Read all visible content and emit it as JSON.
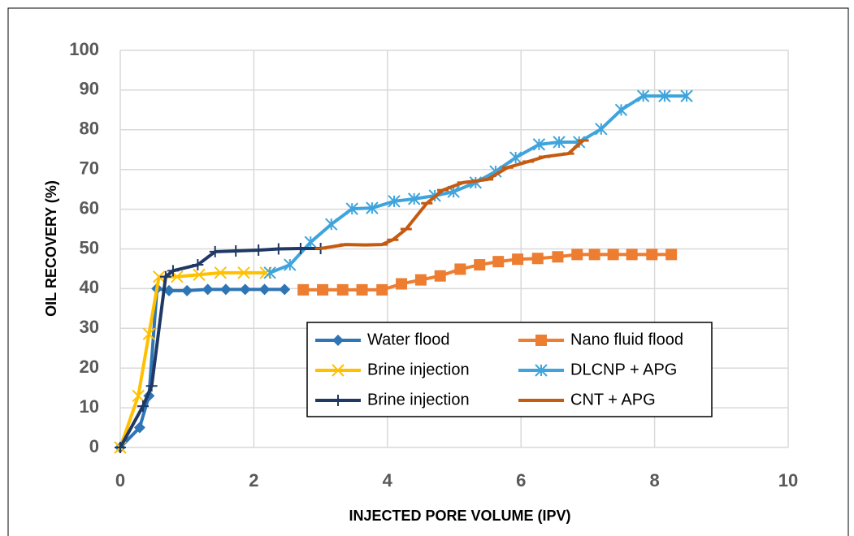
{
  "chart_data": {
    "type": "line",
    "x_label": "INJECTED PORE VOLUME (IPV)",
    "y_label": "OIL RECOVERY (%)",
    "xlim": [
      0,
      10
    ],
    "xticks": [
      0,
      2,
      4,
      6,
      8,
      10
    ],
    "ylim": [
      0,
      100
    ],
    "yticks": [
      0,
      10,
      20,
      30,
      40,
      50,
      60,
      70,
      80,
      90,
      100
    ],
    "grid": true,
    "series": [
      {
        "name": "Water flood",
        "color": "#2e75b6",
        "marker": "diamond",
        "x": [
          0,
          0.29,
          0.43,
          0.55,
          0.73,
          1.0,
          1.31,
          1.58,
          1.87,
          2.16,
          2.46
        ],
        "values": [
          0,
          5,
          13,
          40,
          39.5,
          39.5,
          39.8,
          39.8,
          39.8,
          39.8,
          39.8
        ]
      },
      {
        "name": "Nano fluid flood",
        "color": "#ed7d31",
        "marker": "square",
        "x": [
          2.74,
          3.03,
          3.33,
          3.62,
          3.92,
          4.21,
          4.5,
          4.79,
          5.09,
          5.38,
          5.66,
          5.95,
          6.25,
          6.55,
          6.84,
          7.1,
          7.38,
          7.66,
          7.96,
          8.25
        ],
        "values": [
          39.7,
          39.7,
          39.7,
          39.7,
          39.7,
          41.2,
          42.2,
          43.2,
          44.9,
          46,
          46.8,
          47.4,
          47.6,
          48,
          48.6,
          48.6,
          48.6,
          48.6,
          48.6,
          48.6
        ]
      },
      {
        "name": "Brine injection",
        "color": "#ffc000",
        "marker": "x",
        "x": [
          0,
          0.27,
          0.43,
          0.58,
          0.85,
          1.18,
          1.5,
          1.85,
          2.18
        ],
        "values": [
          0,
          13,
          28.6,
          43,
          43,
          43.5,
          44,
          44,
          44
        ]
      },
      {
        "name": "DLCNP + APG",
        "color": "#3fa4dc",
        "marker": "asterisk",
        "x": [
          2.24,
          2.54,
          2.85,
          3.16,
          3.47,
          3.77,
          4.1,
          4.4,
          4.71,
          4.99,
          5.32,
          5.62,
          5.92,
          6.27,
          6.57,
          6.87,
          7.2,
          7.5,
          7.83,
          8.15,
          8.48
        ],
        "values": [
          44,
          46,
          51.7,
          56.2,
          60.1,
          60.3,
          62,
          62.6,
          63.4,
          64.4,
          66.7,
          69.5,
          73,
          76.3,
          76.9,
          76.9,
          80.2,
          85,
          88.5,
          88.5,
          88.5
        ]
      },
      {
        "name": "Brine injection",
        "color": "#1f3864",
        "marker": "plus",
        "x": [
          0,
          0.34,
          0.47,
          0.68,
          0.79,
          1.16,
          1.42,
          1.73,
          2.07,
          2.37,
          2.7,
          3.0
        ],
        "values": [
          0,
          10.4,
          15.5,
          43,
          44.5,
          46,
          49.3,
          49.5,
          49.7,
          50,
          50.1,
          50.1
        ]
      },
      {
        "name": "CNT + APG",
        "color": "#c55a11",
        "marker": "dash",
        "x": [
          3.0,
          3.37,
          3.67,
          3.92,
          4.08,
          4.28,
          4.59,
          4.83,
          5.13,
          5.5,
          5.8,
          6.11,
          6.35,
          6.71,
          6.93
        ],
        "values": [
          50.1,
          51.1,
          51,
          51.1,
          52.3,
          55,
          61.5,
          64.8,
          66.7,
          67.5,
          70.5,
          72,
          73.2,
          74,
          77.3
        ]
      }
    ]
  }
}
